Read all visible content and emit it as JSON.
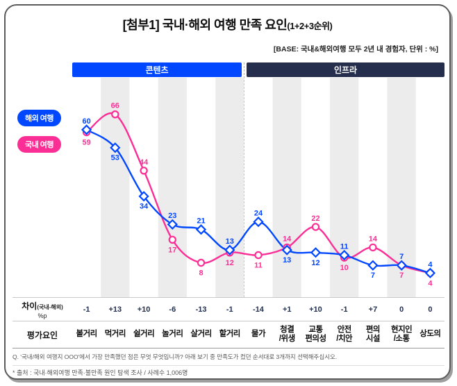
{
  "title": "[첨부1] 국내·해외 여행 만족 요인",
  "title_suffix": "(1+2+3순위)",
  "base_note": "[BASE: 국내&해외여행 모두 2년 내 경험자, 단위 : %]",
  "colors": {
    "overseas": "#0047ff",
    "domestic": "#fb2e96",
    "contents_header": "#0047ff",
    "infra_header": "#252e4c",
    "stripe": "#ececec",
    "diff_text": "#23304f"
  },
  "legend": {
    "overseas": "해외 여행",
    "domestic": "국내 여행"
  },
  "sections": [
    {
      "label": "콘텐츠",
      "color": "#0047ff",
      "span": 6
    },
    {
      "label": "인프라",
      "color": "#252e4c",
      "span": 7
    }
  ],
  "chart_data": {
    "type": "line",
    "title": "[첨부1] 국내·해외 여행 만족 요인(1+2+3순위)",
    "unit": "%",
    "categories": [
      "볼거리",
      "먹거리",
      "쉴거리",
      "놀거리",
      "살거리",
      "할거리",
      "물가",
      "청결/위생",
      "교통 편의성",
      "안전/치안",
      "편의 시설",
      "현지인/소통",
      "상도의"
    ],
    "series": [
      {
        "name": "해외 여행",
        "color": "#0047ff",
        "marker": "diamond",
        "values": [
          60,
          53,
          34,
          23,
          21,
          13,
          24,
          13,
          12,
          11,
          7,
          7,
          4
        ]
      },
      {
        "name": "국내 여행",
        "color": "#fb2e96",
        "marker": "circle",
        "values": [
          59,
          66,
          44,
          17,
          8,
          12,
          11,
          14,
          22,
          10,
          14,
          7,
          4
        ]
      }
    ],
    "ylim": [
      0,
      70
    ],
    "grid": false,
    "legend_position": "left",
    "section_split": 6
  },
  "table": {
    "diff_header": "차이",
    "diff_header_sub": "(국내-해외)",
    "diff_header_unit": "%p",
    "factor_header": "평가요인",
    "diffs": [
      "-1",
      "+13",
      "+10",
      "-6",
      "-13",
      "-1",
      "-14",
      "+1",
      "+10",
      "-1",
      "+7",
      "0",
      "0"
    ]
  },
  "footer": {
    "question": "Q. '국내/해외 여행지 OOO'에서 가장 만족했던 점은 무엇 무엇입니까? 아래 보기 중 만족도가 컸던 순서대로 3개까지 선택해주십시오.",
    "source": "* 출처 : 국내·해외여행 만족·불만족 원인 탐색 조사 / 사례수 1,006명"
  }
}
